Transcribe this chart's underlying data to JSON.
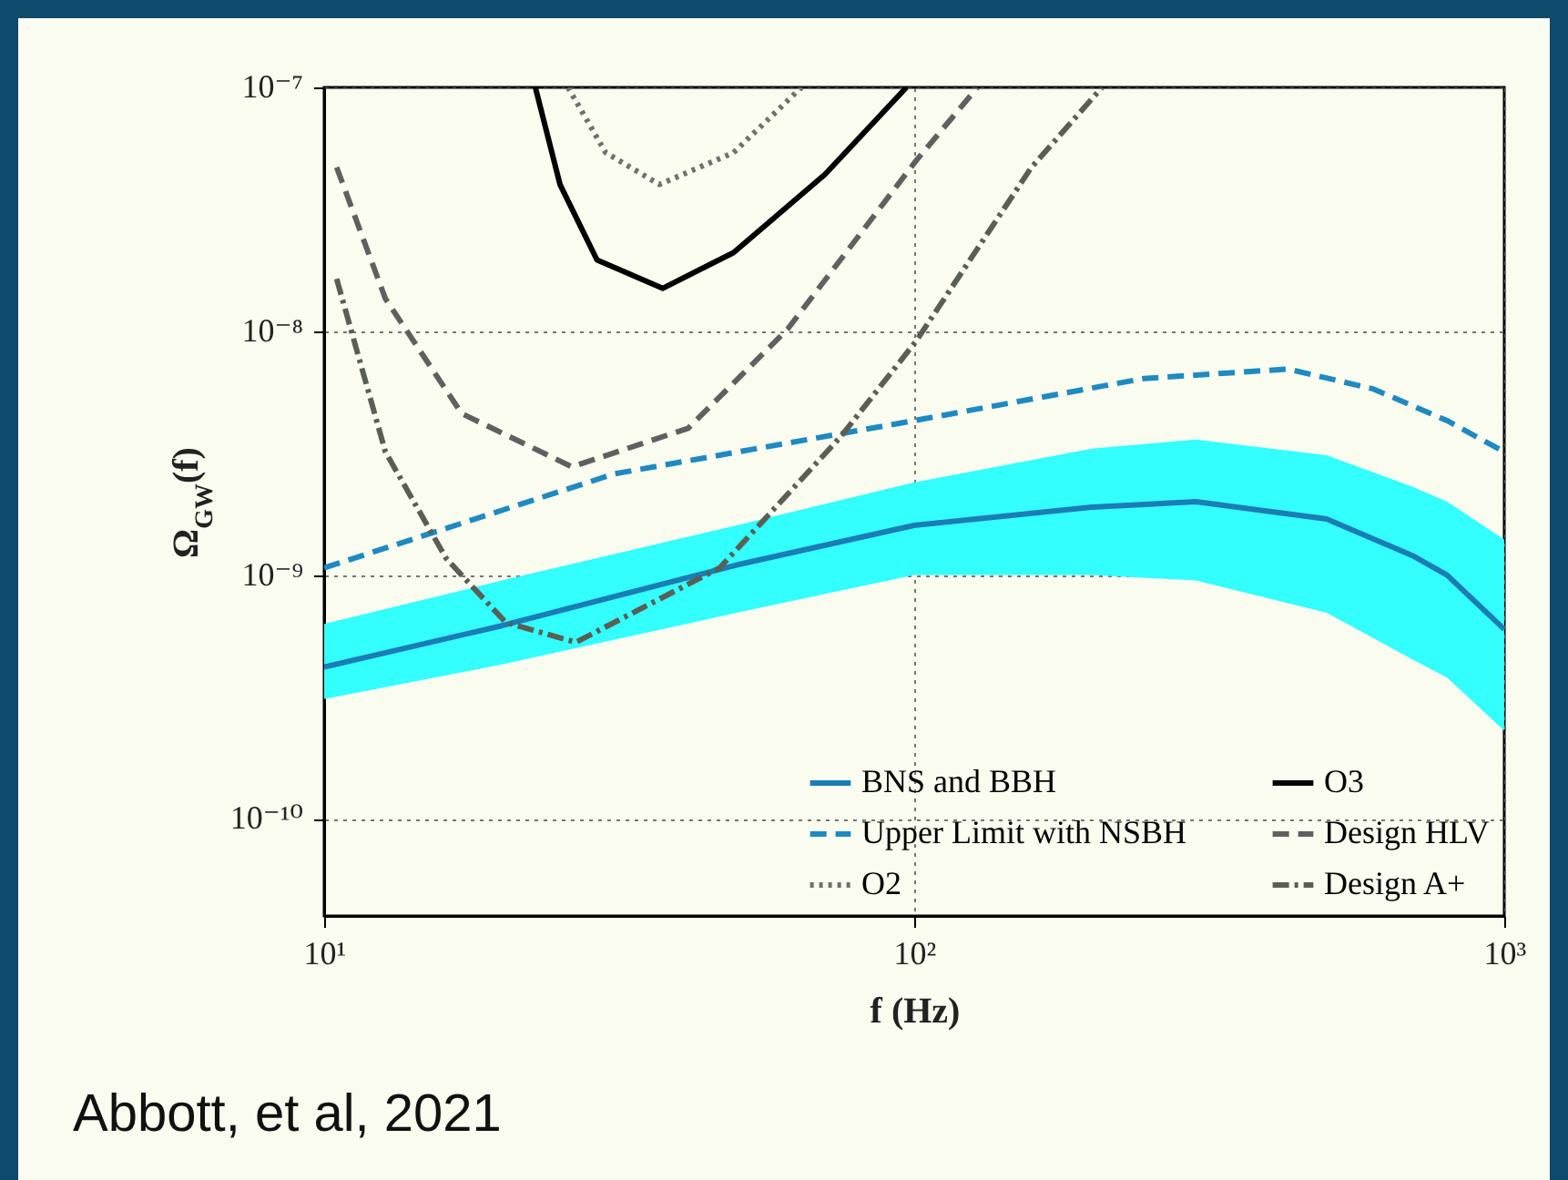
{
  "chart_data": {
    "type": "line",
    "xlabel": "f (Hz)",
    "ylabel": "Ω$_{GW}$(f)",
    "log": "xy",
    "grid": true,
    "legend": "bottom right",
    "xlim": [
      10,
      1000
    ],
    "ylim": [
      4e-11,
      1e-07
    ],
    "xticks": [
      {
        "value": 10,
        "label": "10¹"
      },
      {
        "value": 100,
        "label": "10²"
      },
      {
        "value": 1000,
        "label": "10³"
      }
    ],
    "yticks": [
      {
        "value": 1e-10,
        "label": "10⁻¹⁰"
      },
      {
        "value": 1e-09,
        "label": "10⁻⁹"
      },
      {
        "value": 1e-08,
        "label": "10⁻⁸"
      },
      {
        "value": 1e-07,
        "label": "10⁻⁷"
      }
    ],
    "annotations": [
      "Abbott, et al, 2021"
    ],
    "series": [
      {
        "name": "BNS and BBH",
        "color": "#1b7db5",
        "line_style": "solid",
        "x": [
          10,
          20,
          50,
          100,
          200,
          300,
          500,
          700,
          800,
          1000
        ],
        "values": [
          4.2e-10,
          6.2e-10,
          1.1e-09,
          1.6e-09,
          1.9e-09,
          2e-09,
          1.7e-09,
          1.2e-09,
          1e-09,
          6e-10
        ],
        "lower": [
          3.1e-10,
          4.3e-10,
          7e-10,
          1e-09,
          1e-09,
          9.5e-10,
          7e-10,
          4.5e-10,
          3.8e-10,
          2.3e-10
        ],
        "upper": [
          6.3e-10,
          9.5e-10,
          1.6e-09,
          2.4e-09,
          3.3e-09,
          3.6e-09,
          3.1e-09,
          2.3e-09,
          2e-09,
          1.4e-09
        ]
      },
      {
        "name": "Upper Limit with NSBH",
        "color": "#1f8ac0",
        "line_style": "dashed",
        "x": [
          10,
          31,
          100,
          245,
          430,
          600,
          800,
          1000
        ],
        "values": [
          1.07e-09,
          2.6e-09,
          4.3e-09,
          6.4e-09,
          7e-09,
          5.8e-09,
          4.3e-09,
          3.2e-09
        ]
      },
      {
        "name": "O2",
        "color": "#707070",
        "line_style": "dotted",
        "x": [
          25.9,
          30,
          37,
          49.4,
          64.4
        ],
        "values": [
          1e-07,
          5.4e-08,
          4e-08,
          5.4e-08,
          1e-07
        ]
      },
      {
        "name": "O3",
        "color": "#000000",
        "line_style": "solid",
        "x": [
          22.8,
          25.1,
          29,
          37.5,
          49.4,
          70.6,
          97
        ],
        "values": [
          1e-07,
          4e-08,
          1.96e-08,
          1.5e-08,
          2.1e-08,
          4.4e-08,
          1e-07
        ]
      },
      {
        "name": "Design HLV",
        "color": "#606060",
        "line_style": "dashed",
        "x": [
          10.5,
          12.7,
          17.1,
          26.3,
          41.4,
          61,
          100.7,
          128
        ],
        "values": [
          4.7e-08,
          1.36e-08,
          4.6e-09,
          2.78e-09,
          4e-09,
          1.02e-08,
          5e-08,
          1e-07
        ]
      },
      {
        "name": "Design A+",
        "color": "#5a5f55",
        "line_style": "dashdot",
        "x": [
          10.5,
          12.7,
          16.1,
          20.3,
          26.7,
          46.8,
          75.1,
          100.7,
          158,
          208
        ],
        "values": [
          1.64e-08,
          3.2e-09,
          1.17e-09,
          6.4e-10,
          5.3e-10,
          1.07e-09,
          3.7e-09,
          9.1e-09,
          4.7e-08,
          1e-07
        ]
      }
    ]
  }
}
